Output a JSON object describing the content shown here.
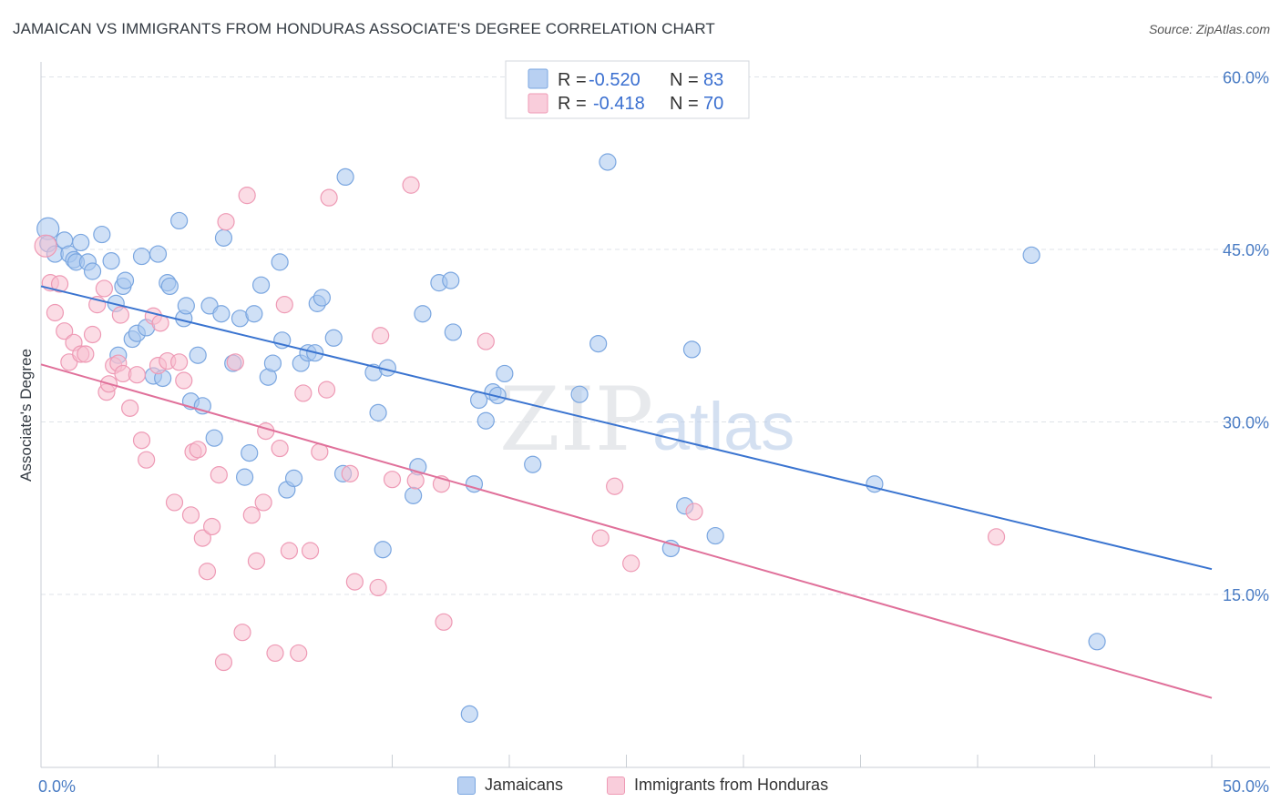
{
  "title": "JAMAICAN VS IMMIGRANTS FROM HONDURAS ASSOCIATE'S DEGREE CORRELATION CHART",
  "source": "Source: ZipAtlas.com",
  "watermark": {
    "zip": "ZIP",
    "atlas": "atlas"
  },
  "colors": {
    "blue_fill": "#a8c6ee",
    "blue_stroke": "#7aa6e0",
    "blue_line": "#3a74d0",
    "pink_fill": "#f7bfd0",
    "pink_stroke": "#ee9ab5",
    "pink_line": "#e0709a",
    "grid": "#dfe3e8",
    "tick_text": "#4a7cc4"
  },
  "legend": {
    "r_label": "R =",
    "n_label": "N =",
    "entries": [
      {
        "r": "-0.520",
        "n": "83"
      },
      {
        "r": "-0.418",
        "n": "70"
      }
    ]
  },
  "chart_data": {
    "type": "scatter",
    "title": "JAMAICAN VS IMMIGRANTS FROM HONDURAS ASSOCIATE'S DEGREE CORRELATION CHART",
    "xlabel": "",
    "ylabel": "Associate's Degree",
    "xlim": [
      0,
      50
    ],
    "ylim": [
      0,
      63
    ],
    "x_tick_labels": [
      "0.0%",
      "50.0%"
    ],
    "y_ticks": [
      15,
      30,
      45,
      60
    ],
    "y_tick_labels": [
      "15.0%",
      "30.0%",
      "45.0%",
      "60.0%"
    ],
    "grid": true,
    "legend_placement": "top-center",
    "series": [
      {
        "name": "Jamaicans",
        "trend": {
          "x": [
            0,
            50
          ],
          "y": [
            41.8,
            17.2
          ]
        },
        "points": [
          {
            "x": 0.3,
            "y": 46.8
          },
          {
            "x": 0.3,
            "y": 45.5
          },
          {
            "x": 0.6,
            "y": 44.6
          },
          {
            "x": 1.0,
            "y": 45.8
          },
          {
            "x": 1.2,
            "y": 44.6
          },
          {
            "x": 1.7,
            "y": 45.6
          },
          {
            "x": 1.4,
            "y": 44.1
          },
          {
            "x": 1.5,
            "y": 43.9
          },
          {
            "x": 2.0,
            "y": 43.9
          },
          {
            "x": 2.2,
            "y": 43.1
          },
          {
            "x": 2.6,
            "y": 46.3
          },
          {
            "x": 3.0,
            "y": 44.0
          },
          {
            "x": 3.2,
            "y": 40.3
          },
          {
            "x": 3.5,
            "y": 41.8
          },
          {
            "x": 3.6,
            "y": 42.3
          },
          {
            "x": 3.3,
            "y": 35.8
          },
          {
            "x": 3.9,
            "y": 37.2
          },
          {
            "x": 4.1,
            "y": 37.7
          },
          {
            "x": 4.3,
            "y": 44.4
          },
          {
            "x": 4.5,
            "y": 38.2
          },
          {
            "x": 4.8,
            "y": 34.0
          },
          {
            "x": 5.0,
            "y": 44.6
          },
          {
            "x": 5.2,
            "y": 33.8
          },
          {
            "x": 5.4,
            "y": 42.1
          },
          {
            "x": 5.5,
            "y": 41.8
          },
          {
            "x": 5.9,
            "y": 47.5
          },
          {
            "x": 6.1,
            "y": 39.0
          },
          {
            "x": 6.2,
            "y": 40.1
          },
          {
            "x": 6.4,
            "y": 31.8
          },
          {
            "x": 6.7,
            "y": 35.8
          },
          {
            "x": 6.9,
            "y": 31.4
          },
          {
            "x": 7.2,
            "y": 40.1
          },
          {
            "x": 7.4,
            "y": 28.6
          },
          {
            "x": 7.7,
            "y": 39.4
          },
          {
            "x": 7.8,
            "y": 46.0
          },
          {
            "x": 8.2,
            "y": 35.1
          },
          {
            "x": 8.5,
            "y": 39.0
          },
          {
            "x": 8.7,
            "y": 25.2
          },
          {
            "x": 8.9,
            "y": 27.3
          },
          {
            "x": 9.1,
            "y": 39.4
          },
          {
            "x": 9.4,
            "y": 41.9
          },
          {
            "x": 9.7,
            "y": 33.9
          },
          {
            "x": 9.9,
            "y": 35.1
          },
          {
            "x": 10.2,
            "y": 43.9
          },
          {
            "x": 10.3,
            "y": 37.1
          },
          {
            "x": 10.5,
            "y": 24.1
          },
          {
            "x": 10.8,
            "y": 25.1
          },
          {
            "x": 11.1,
            "y": 35.1
          },
          {
            "x": 11.4,
            "y": 36.0
          },
          {
            "x": 11.7,
            "y": 36.0
          },
          {
            "x": 11.8,
            "y": 40.3
          },
          {
            "x": 12.0,
            "y": 40.8
          },
          {
            "x": 12.5,
            "y": 37.3
          },
          {
            "x": 12.9,
            "y": 25.5
          },
          {
            "x": 13.0,
            "y": 51.3
          },
          {
            "x": 14.2,
            "y": 34.3
          },
          {
            "x": 14.4,
            "y": 30.8
          },
          {
            "x": 14.6,
            "y": 18.9
          },
          {
            "x": 14.8,
            "y": 34.7
          },
          {
            "x": 15.9,
            "y": 23.6
          },
          {
            "x": 16.1,
            "y": 26.1
          },
          {
            "x": 16.3,
            "y": 39.4
          },
          {
            "x": 17.0,
            "y": 42.1
          },
          {
            "x": 17.5,
            "y": 42.3
          },
          {
            "x": 17.6,
            "y": 37.8
          },
          {
            "x": 18.5,
            "y": 24.6
          },
          {
            "x": 18.7,
            "y": 31.9
          },
          {
            "x": 19.0,
            "y": 30.1
          },
          {
            "x": 19.3,
            "y": 32.6
          },
          {
            "x": 19.5,
            "y": 32.3
          },
          {
            "x": 19.8,
            "y": 34.2
          },
          {
            "x": 21.0,
            "y": 26.3
          },
          {
            "x": 23.0,
            "y": 32.4
          },
          {
            "x": 23.8,
            "y": 36.8
          },
          {
            "x": 24.2,
            "y": 52.6
          },
          {
            "x": 26.9,
            "y": 19.0
          },
          {
            "x": 27.5,
            "y": 22.7
          },
          {
            "x": 27.8,
            "y": 36.3
          },
          {
            "x": 28.8,
            "y": 20.1
          },
          {
            "x": 35.6,
            "y": 24.6
          },
          {
            "x": 42.3,
            "y": 44.5
          },
          {
            "x": 45.1,
            "y": 10.9
          },
          {
            "x": 18.3,
            "y": 4.6
          }
        ]
      },
      {
        "name": "Immigrants from Honduras",
        "trend": {
          "x": [
            0,
            50
          ],
          "y": [
            35.0,
            6.0
          ]
        },
        "points": [
          {
            "x": 0.2,
            "y": 45.3
          },
          {
            "x": 0.4,
            "y": 42.1
          },
          {
            "x": 0.6,
            "y": 39.5
          },
          {
            "x": 0.8,
            "y": 42.0
          },
          {
            "x": 1.0,
            "y": 37.9
          },
          {
            "x": 1.2,
            "y": 35.2
          },
          {
            "x": 1.4,
            "y": 36.9
          },
          {
            "x": 1.7,
            "y": 35.9
          },
          {
            "x": 1.9,
            "y": 35.9
          },
          {
            "x": 2.2,
            "y": 37.6
          },
          {
            "x": 2.4,
            "y": 40.2
          },
          {
            "x": 2.7,
            "y": 41.6
          },
          {
            "x": 2.8,
            "y": 32.6
          },
          {
            "x": 2.9,
            "y": 33.3
          },
          {
            "x": 3.1,
            "y": 34.9
          },
          {
            "x": 3.3,
            "y": 35.1
          },
          {
            "x": 3.4,
            "y": 39.3
          },
          {
            "x": 3.5,
            "y": 34.2
          },
          {
            "x": 3.8,
            "y": 31.2
          },
          {
            "x": 4.1,
            "y": 34.1
          },
          {
            "x": 4.3,
            "y": 28.4
          },
          {
            "x": 4.5,
            "y": 26.7
          },
          {
            "x": 4.8,
            "y": 39.2
          },
          {
            "x": 5.0,
            "y": 34.9
          },
          {
            "x": 5.1,
            "y": 38.6
          },
          {
            "x": 5.4,
            "y": 35.3
          },
          {
            "x": 5.7,
            "y": 23.0
          },
          {
            "x": 5.9,
            "y": 35.2
          },
          {
            "x": 6.1,
            "y": 33.6
          },
          {
            "x": 6.4,
            "y": 21.9
          },
          {
            "x": 6.5,
            "y": 27.4
          },
          {
            "x": 6.7,
            "y": 27.6
          },
          {
            "x": 6.9,
            "y": 19.9
          },
          {
            "x": 7.1,
            "y": 17.0
          },
          {
            "x": 7.3,
            "y": 20.9
          },
          {
            "x": 7.6,
            "y": 25.4
          },
          {
            "x": 7.8,
            "y": 9.1
          },
          {
            "x": 7.9,
            "y": 47.4
          },
          {
            "x": 8.3,
            "y": 35.2
          },
          {
            "x": 8.6,
            "y": 11.7
          },
          {
            "x": 8.8,
            "y": 49.7
          },
          {
            "x": 9.0,
            "y": 21.9
          },
          {
            "x": 9.2,
            "y": 17.9
          },
          {
            "x": 9.5,
            "y": 23.0
          },
          {
            "x": 9.6,
            "y": 29.2
          },
          {
            "x": 10.0,
            "y": 9.9
          },
          {
            "x": 10.2,
            "y": 27.7
          },
          {
            "x": 10.4,
            "y": 40.2
          },
          {
            "x": 10.6,
            "y": 18.8
          },
          {
            "x": 11.0,
            "y": 9.9
          },
          {
            "x": 11.2,
            "y": 32.5
          },
          {
            "x": 11.5,
            "y": 18.8
          },
          {
            "x": 11.9,
            "y": 27.4
          },
          {
            "x": 12.2,
            "y": 32.8
          },
          {
            "x": 12.3,
            "y": 49.5
          },
          {
            "x": 13.2,
            "y": 25.5
          },
          {
            "x": 13.4,
            "y": 16.1
          },
          {
            "x": 14.4,
            "y": 15.6
          },
          {
            "x": 14.5,
            "y": 37.5
          },
          {
            "x": 15.0,
            "y": 25.0
          },
          {
            "x": 15.8,
            "y": 50.6
          },
          {
            "x": 16.0,
            "y": 24.9
          },
          {
            "x": 17.1,
            "y": 24.6
          },
          {
            "x": 17.2,
            "y": 12.6
          },
          {
            "x": 19.0,
            "y": 37.0
          },
          {
            "x": 23.9,
            "y": 19.9
          },
          {
            "x": 24.5,
            "y": 24.4
          },
          {
            "x": 25.2,
            "y": 17.7
          },
          {
            "x": 27.9,
            "y": 22.2
          },
          {
            "x": 40.8,
            "y": 20.0
          }
        ]
      }
    ]
  }
}
